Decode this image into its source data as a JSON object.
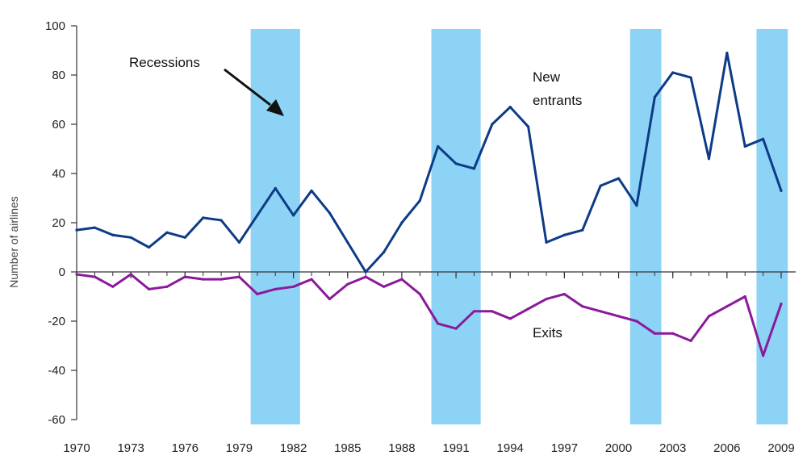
{
  "chart_data": {
    "type": "line",
    "title": "",
    "xlabel": "",
    "ylabel": "Number of airlines",
    "xlim": [
      1970,
      2009
    ],
    "ylim": [
      -60,
      100
    ],
    "y_ticks": [
      100,
      80,
      60,
      40,
      20,
      0,
      -20,
      -40,
      -60
    ],
    "y_tick_labels": [
      "100",
      "80",
      "60",
      "40",
      "20",
      "0",
      "-20",
      "-40",
      "-60"
    ],
    "x_ticks": [
      1970,
      1973,
      1976,
      1979,
      1982,
      1985,
      1988,
      1991,
      1994,
      1997,
      2000,
      2003,
      2006,
      2009
    ],
    "x_tick_labels": [
      "1970",
      "1973",
      "1976",
      "1979",
      "1982",
      "1985",
      "1988",
      "1991",
      "1994",
      "1997",
      "2000",
      "2003",
      "2006",
      "2009"
    ],
    "x": [
      1970,
      1971,
      1972,
      1973,
      1974,
      1975,
      1976,
      1977,
      1978,
      1979,
      1980,
      1981,
      1982,
      1983,
      1984,
      1985,
      1986,
      1987,
      1988,
      1989,
      1990,
      1991,
      1992,
      1993,
      1994,
      1995,
      1996,
      1997,
      1998,
      1999,
      2000,
      2001,
      2002,
      2003,
      2004,
      2005,
      2006,
      2007,
      2008,
      2009
    ],
    "series": [
      {
        "name": "New entrants",
        "label_lines": [
          "New",
          "entrants"
        ],
        "color": "#0d3b87",
        "values": [
          17,
          18,
          15,
          14,
          10,
          16,
          14,
          22,
          21,
          12,
          23,
          34,
          23,
          33,
          24,
          12,
          0,
          8,
          20,
          29,
          51,
          44,
          42,
          60,
          67,
          59,
          12,
          15,
          17,
          35,
          38,
          27,
          71,
          81,
          79,
          46,
          89,
          51,
          54,
          33
        ]
      },
      {
        "name": "Exits",
        "label_lines": [
          "Exits"
        ],
        "color": "#8b1a9b",
        "values": [
          -1,
          -2,
          -6,
          -1,
          -7,
          -6,
          -2,
          -3,
          -3,
          -2,
          -9,
          -7,
          -6,
          -3,
          -11,
          -5,
          -2,
          -6,
          -3,
          -9,
          -21,
          -23,
          -16,
          -16,
          -19,
          -15,
          -11,
          -9,
          -14,
          -16,
          -18,
          -20,
          -25,
          -25,
          -28,
          -18,
          -14,
          -10,
          -34,
          -13
        ]
      }
    ],
    "recessions": [
      {
        "start": 1979.5,
        "end": 1982.5
      },
      {
        "start": 1989.5,
        "end": 1992.5
      },
      {
        "start": 2000.5,
        "end": 2002.5
      },
      {
        "start": 2007.5,
        "end": 2009.5
      }
    ],
    "recession_color": "#8dd3f5",
    "axis_color": "#333333",
    "annotation": {
      "text": "Recessions"
    }
  }
}
